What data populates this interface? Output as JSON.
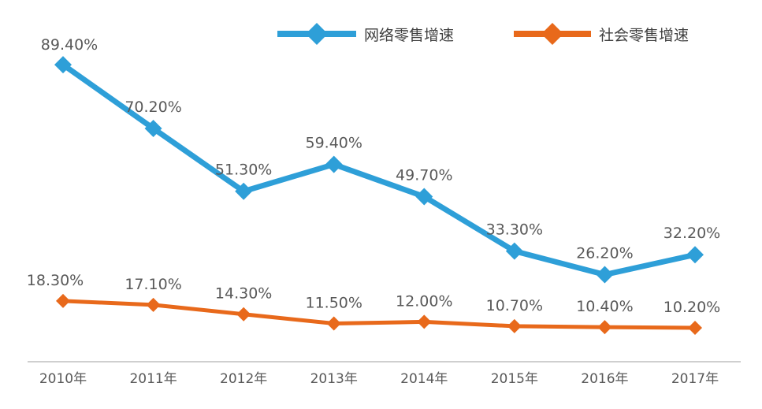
{
  "chart_data": {
    "type": "line",
    "title": "",
    "xlabel": "",
    "ylabel": "",
    "categories": [
      "2010年",
      "2011年",
      "2012年",
      "2013年",
      "2014年",
      "2015年",
      "2016年",
      "2017年"
    ],
    "ylim": [
      0,
      100
    ],
    "grid": false,
    "legend_position": "top-right",
    "series": [
      {
        "name": "网络零售增速",
        "color": "#2e9fd8",
        "marker": "diamond",
        "values": [
          89.4,
          70.2,
          51.3,
          59.4,
          49.7,
          33.3,
          26.2,
          32.2
        ],
        "labels": [
          "89.40%",
          "70.20%",
          "51.30%",
          "59.40%",
          "49.70%",
          "33.30%",
          "26.20%",
          "32.20%"
        ]
      },
      {
        "name": "社会零售增速",
        "color": "#e8691b",
        "marker": "diamond",
        "values": [
          18.3,
          17.1,
          14.3,
          11.5,
          12.0,
          10.7,
          10.4,
          10.2
        ],
        "labels": [
          "18.30%",
          "17.10%",
          "14.30%",
          "11.50%",
          "12.00%",
          "10.70%",
          "10.40%",
          "10.20%"
        ]
      }
    ]
  }
}
